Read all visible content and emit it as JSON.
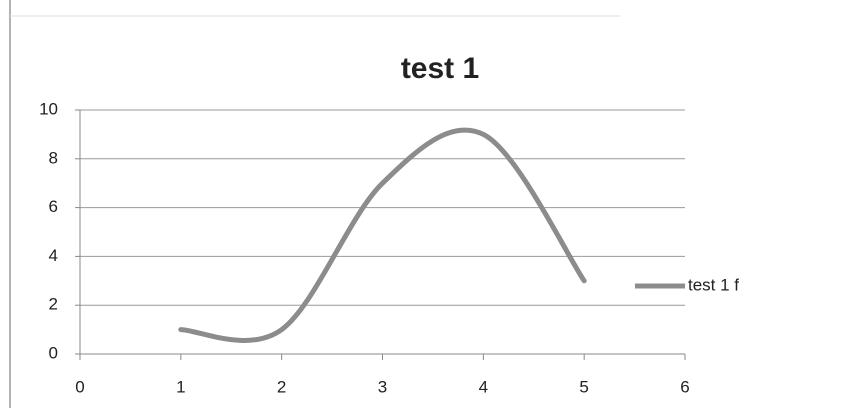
{
  "chart_data": {
    "type": "line",
    "title": "test 1",
    "x": [
      1,
      2,
      3,
      4,
      5
    ],
    "series": [
      {
        "name": "test 1 f",
        "color": "#8c8c8c",
        "values": [
          1,
          1,
          7,
          9,
          3
        ]
      }
    ],
    "smooth": true,
    "xlim": [
      0,
      6
    ],
    "xticks": [
      0,
      1,
      2,
      3,
      4,
      5,
      6
    ],
    "ylim": [
      0,
      10
    ],
    "yticks": [
      0,
      2,
      4,
      6,
      8,
      10
    ],
    "grid": true,
    "legend": "right"
  }
}
